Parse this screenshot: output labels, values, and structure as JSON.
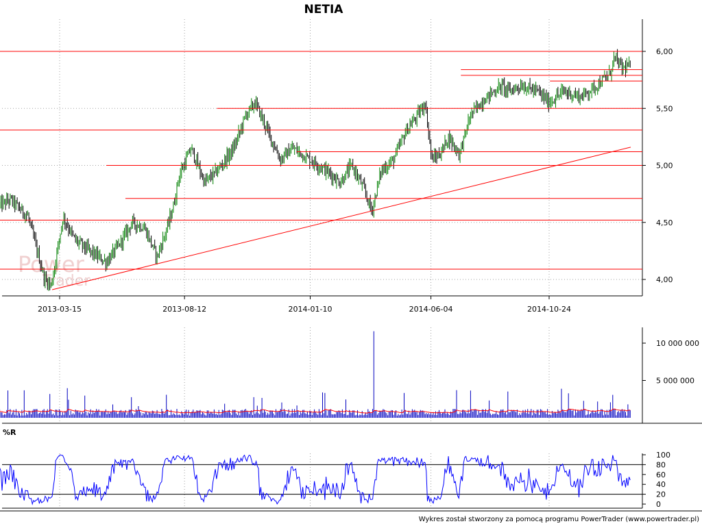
{
  "chart_data": [
    {
      "type": "candlestick",
      "title": "NETIA",
      "x_ticks": [
        "2013-03-15",
        "2013-08-12",
        "2014-01-10",
        "2014-06-04",
        "2014-10-24"
      ],
      "y_ticks": [
        "4,00",
        "4,50",
        "5,00",
        "5,50",
        "6,00"
      ],
      "ylim": [
        3.9,
        6.2
      ],
      "grid": true,
      "price_path": [
        [
          "2013-01-02",
          4.65
        ],
        [
          "2013-01-15",
          4.7
        ],
        [
          "2013-02-05",
          4.55
        ],
        [
          "2013-02-25",
          4.0
        ],
        [
          "2013-03-05",
          3.95
        ],
        [
          "2013-03-12",
          4.25
        ],
        [
          "2013-03-19",
          4.55
        ],
        [
          "2013-04-02",
          4.35
        ],
        [
          "2013-04-20",
          4.25
        ],
        [
          "2013-05-10",
          4.15
        ],
        [
          "2013-05-25",
          4.3
        ],
        [
          "2013-06-10",
          4.5
        ],
        [
          "2013-06-25",
          4.45
        ],
        [
          "2013-07-10",
          4.2
        ],
        [
          "2013-07-22",
          4.45
        ],
        [
          "2013-07-30",
          4.65
        ],
        [
          "2013-08-05",
          4.9
        ],
        [
          "2013-08-20",
          5.15
        ],
        [
          "2013-09-05",
          4.85
        ],
        [
          "2013-09-20",
          4.95
        ],
        [
          "2013-10-10",
          5.15
        ],
        [
          "2013-10-25",
          5.45
        ],
        [
          "2013-11-05",
          5.55
        ],
        [
          "2013-11-20",
          5.3
        ],
        [
          "2013-12-05",
          5.05
        ],
        [
          "2013-12-20",
          5.15
        ],
        [
          "2014-01-10",
          5.05
        ],
        [
          "2014-01-30",
          4.95
        ],
        [
          "2014-02-15",
          4.85
        ],
        [
          "2014-03-01",
          5.0
        ],
        [
          "2014-03-15",
          4.8
        ],
        [
          "2014-03-25",
          4.6
        ],
        [
          "2014-04-05",
          4.95
        ],
        [
          "2014-04-20",
          5.05
        ],
        [
          "2014-05-05",
          5.3
        ],
        [
          "2014-05-20",
          5.45
        ],
        [
          "2014-05-28",
          5.55
        ],
        [
          "2014-06-05",
          5.05
        ],
        [
          "2014-06-15",
          5.1
        ],
        [
          "2014-06-25",
          5.25
        ],
        [
          "2014-07-08",
          5.1
        ],
        [
          "2014-07-22",
          5.45
        ],
        [
          "2014-08-10",
          5.6
        ],
        [
          "2014-08-28",
          5.7
        ],
        [
          "2014-09-05",
          5.65
        ],
        [
          "2014-09-20",
          5.7
        ],
        [
          "2014-10-10",
          5.65
        ],
        [
          "2014-10-24",
          5.55
        ],
        [
          "2014-11-10",
          5.65
        ],
        [
          "2014-12-01",
          5.6
        ],
        [
          "2014-12-20",
          5.7
        ],
        [
          "2015-01-05",
          5.8
        ],
        [
          "2015-01-10",
          5.95
        ],
        [
          "2015-01-20",
          5.85
        ],
        [
          "2015-01-30",
          5.88
        ]
      ],
      "horizontal_levels": [
        {
          "y": 4.09,
          "x_start": "2013-01-02"
        },
        {
          "y": 4.52,
          "x_start": "2013-01-02"
        },
        {
          "y": 4.71,
          "x_start": "2013-06-02"
        },
        {
          "y": 5.0,
          "x_start": "2013-05-10"
        },
        {
          "y": 5.12,
          "x_start": "2013-12-25"
        },
        {
          "y": 5.31,
          "x_start": "2013-01-02"
        },
        {
          "y": 5.5,
          "x_start": "2013-09-20"
        },
        {
          "y": 5.74,
          "x_start": "2014-10-25"
        },
        {
          "y": 5.79,
          "x_start": "2014-07-10"
        },
        {
          "y": 5.84,
          "x_start": "2014-07-10"
        },
        {
          "y": 6.0,
          "x_start": "2013-01-02"
        }
      ],
      "trend_line": [
        [
          "2013-03-06",
          3.91
        ],
        [
          "2015-01-30",
          5.16
        ]
      ],
      "watermark": "PowerTrader"
    },
    {
      "type": "bar",
      "name": "volume",
      "y_ticks": [
        "5 000 000",
        "10 000 000"
      ],
      "ylim": [
        0,
        12000000
      ],
      "spike_dates": [
        "2014-03-27"
      ],
      "spike_values": [
        11600000
      ]
    },
    {
      "type": "line",
      "title": "%R",
      "y_ticks": [
        "0",
        "20",
        "40",
        "60",
        "80",
        "100"
      ],
      "ylim": [
        0,
        100
      ],
      "reference_levels": [
        20,
        80
      ]
    }
  ],
  "footer": "Wykres został stworzony za pomocą programu PowerTrader (www.powertrader.pl)",
  "colors": {
    "rise": "#008000",
    "fall": "#000000",
    "levels": "#ff0000",
    "volume": "#0000c0",
    "volume_avg": "#ff0000",
    "wr": "#0000ff",
    "grid": "#a0a0a0"
  }
}
